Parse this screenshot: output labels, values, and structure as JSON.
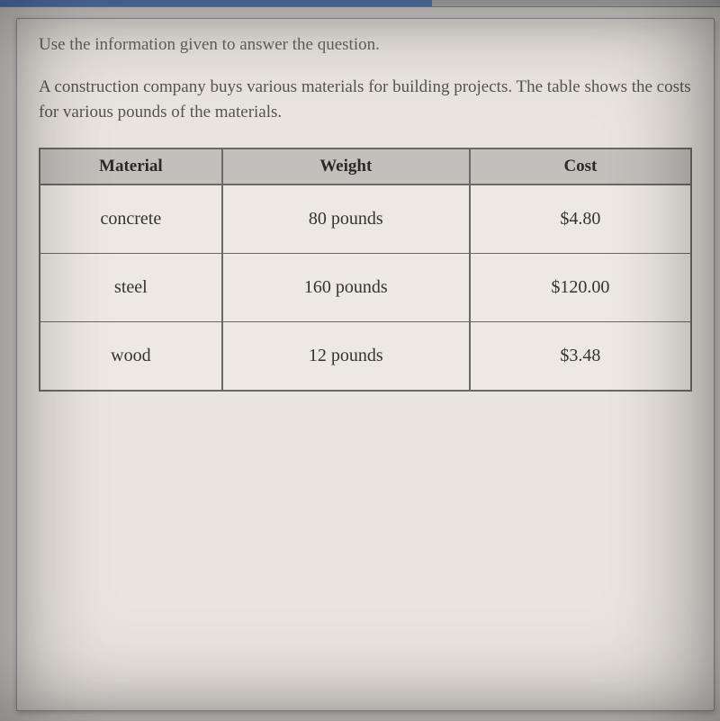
{
  "instruction": "Use the information given to answer the question.",
  "context": "A construction company buys various materials for building projects. The table shows the costs for various pounds of the materials.",
  "table": {
    "columns": [
      "Material",
      "Weight",
      "Cost"
    ],
    "col_widths": [
      "28%",
      "38%",
      "34%"
    ],
    "rows": [
      {
        "material": "concrete",
        "weight": "80 pounds",
        "cost": "$4.80"
      },
      {
        "material": "steel",
        "weight": "160 pounds",
        "cost": "$120.00"
      },
      {
        "material": "wood",
        "weight": "12 pounds",
        "cost": "$3.48"
      }
    ],
    "header_bg": "#c2c0ba",
    "border_color": "#6a6a64",
    "cell_bg": "#ebe9e2",
    "header_fontsize": 19,
    "cell_fontsize": 20
  },
  "colors": {
    "page_bg": "#e8e5de",
    "body_bg": "#d8d6d0",
    "text_instruction": "#666660",
    "text_context": "#555550",
    "progress_fill": "#5a7db8",
    "progress_track": "#b8b8b8"
  },
  "typography": {
    "font_family": "Georgia, serif",
    "instruction_fontsize": 19,
    "context_fontsize": 19
  }
}
